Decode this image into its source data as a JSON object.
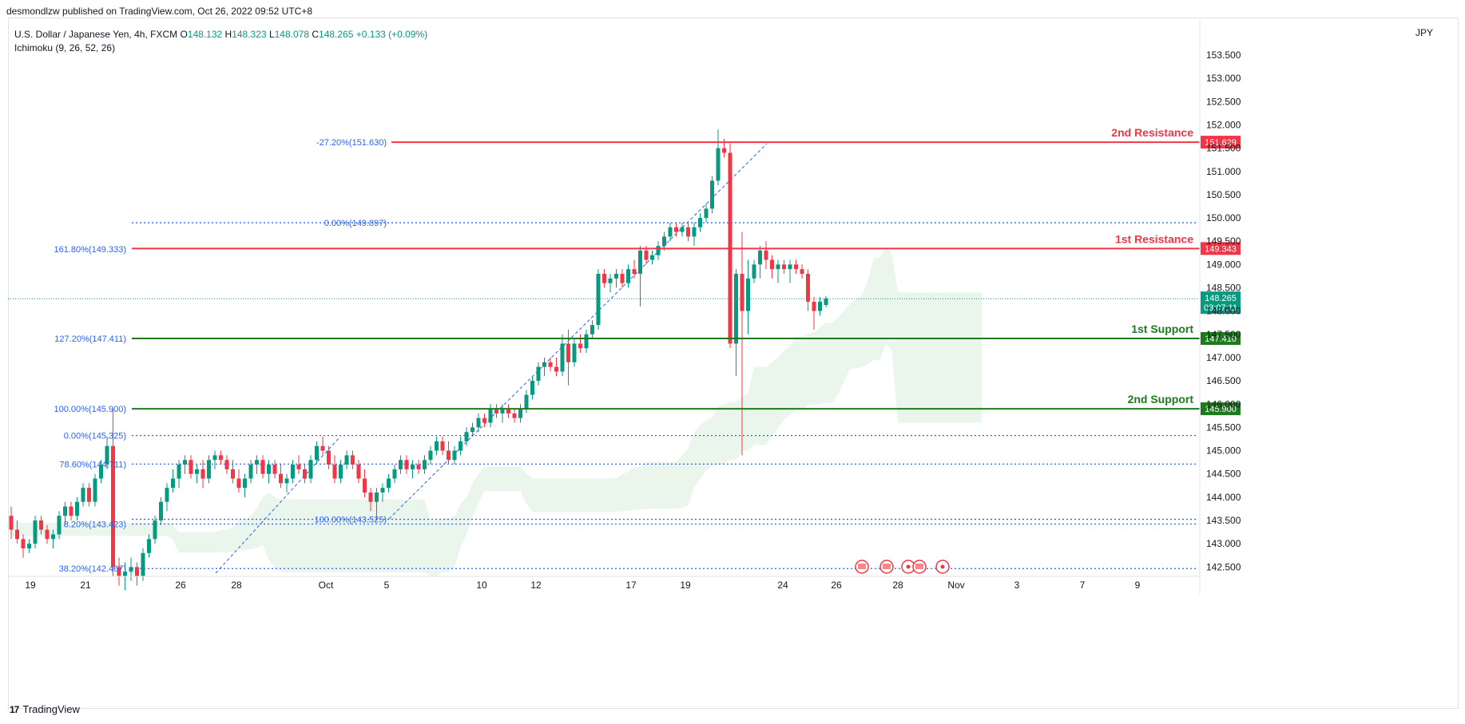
{
  "header": {
    "publisher": "desmondlzw published on TradingView.com, Oct 26, 2022 09:52 UTC+8"
  },
  "legend": {
    "symbol": "U.S. Dollar / Japanese Yen, 4h, FXCM",
    "open_label": "O",
    "open": "148.132",
    "high_label": "H",
    "high": "148.323",
    "low_label": "L",
    "low": "148.078",
    "close_label": "C",
    "close": "148.265",
    "change": "+0.133 (+0.09%)",
    "indicator": "Ichimoku (9, 26, 52, 26)"
  },
  "currency": "JPY",
  "footer": {
    "brand": "TradingView",
    "logo_mark": "17"
  },
  "colors": {
    "up": "#089981",
    "down": "#f23645",
    "resistance": "#f23645",
    "support": "#1f7a1f",
    "fib": "#2962ff",
    "cloud": "#e6f4e8"
  },
  "chart_data": {
    "type": "candlestick",
    "ylim": [
      142.2,
      154.0
    ],
    "y_ticks": [
      "153.500",
      "153.000",
      "152.500",
      "152.000",
      "151.500",
      "151.000",
      "150.500",
      "150.000",
      "149.500",
      "149.000",
      "148.500",
      "148.000",
      "147.500",
      "147.000",
      "146.500",
      "146.000",
      "145.500",
      "145.000",
      "144.500",
      "144.000",
      "143.500",
      "143.000",
      "142.500"
    ],
    "x_ticks": [
      "19",
      "21",
      "26",
      "28",
      "Oct",
      "5",
      "10",
      "12",
      "17",
      "19",
      "24",
      "26",
      "28",
      "Nov",
      "3",
      "7",
      "9"
    ],
    "current_price": {
      "price": 148.265,
      "label": "148.265",
      "countdown": "03:07:11"
    },
    "horizontal_levels": [
      {
        "name": "2nd Resistance",
        "price": 151.629,
        "label": "151.629",
        "kind": "resistance"
      },
      {
        "name": "1st Resistance",
        "price": 149.343,
        "label": "149.343",
        "kind": "resistance"
      },
      {
        "name": "1st Support",
        "price": 147.41,
        "label": "147.410",
        "kind": "support"
      },
      {
        "name": "2nd Support",
        "price": 145.9,
        "label": "145.900",
        "kind": "support"
      }
    ],
    "fib_labels": [
      {
        "text": "-27.20%(151.630)",
        "price": 151.63
      },
      {
        "text": "0.00%(149.897)",
        "price": 149.897
      },
      {
        "text": "161.80%(149.333)",
        "price": 149.333
      },
      {
        "text": "127.20%(147.411)",
        "price": 147.411
      },
      {
        "text": "100.00%(145.900)",
        "price": 145.9
      },
      {
        "text": "0.00%(145.325)",
        "price": 145.325
      },
      {
        "text": "78.60%(144.711)",
        "price": 144.711
      },
      {
        "text": "8.20%(143.423)",
        "price": 143.423
      },
      {
        "text": "100.00%(143.525)",
        "price": 143.525
      },
      {
        "text": "38.20%(142.467)",
        "price": 142.467
      }
    ],
    "dotted_levels": [
      149.897,
      145.325,
      144.711,
      143.525,
      143.423,
      142.467
    ],
    "trend_lines": [
      {
        "from": {
          "bar": 0.47,
          "price": 142.4
        },
        "to": {
          "bar": 0.885,
          "price": 145.4
        }
      },
      {
        "from": {
          "bar": 1.075,
          "price": 143.5
        },
        "to": {
          "bar": 1.97,
          "price": 151.6
        }
      }
    ],
    "event_markers": [
      "us-flag",
      "us-flag",
      "circle",
      "us-flag",
      "circle"
    ],
    "candles": [
      [
        143.6,
        143.8,
        143.1,
        143.3
      ],
      [
        143.3,
        143.5,
        143.0,
        143.1
      ],
      [
        143.1,
        143.2,
        142.7,
        142.9
      ],
      [
        142.9,
        143.1,
        142.8,
        143.0
      ],
      [
        143.0,
        143.6,
        142.9,
        143.5
      ],
      [
        143.5,
        143.6,
        143.2,
        143.3
      ],
      [
        143.3,
        143.4,
        143.0,
        143.1
      ],
      [
        143.1,
        143.3,
        142.9,
        143.2
      ],
      [
        143.2,
        143.7,
        143.1,
        143.6
      ],
      [
        143.6,
        143.9,
        143.4,
        143.8
      ],
      [
        143.8,
        143.9,
        143.5,
        143.6
      ],
      [
        143.6,
        144.0,
        143.5,
        143.9
      ],
      [
        143.9,
        144.3,
        143.8,
        144.2
      ],
      [
        144.2,
        144.3,
        143.8,
        143.9
      ],
      [
        143.9,
        144.5,
        143.8,
        144.4
      ],
      [
        144.4,
        144.8,
        144.3,
        144.7
      ],
      [
        144.7,
        145.3,
        144.6,
        145.1
      ],
      [
        145.1,
        145.9,
        142.3,
        142.5
      ],
      [
        142.5,
        142.7,
        142.1,
        142.3
      ],
      [
        142.3,
        142.6,
        142.0,
        142.4
      ],
      [
        142.4,
        142.7,
        142.2,
        142.5
      ],
      [
        142.5,
        142.6,
        142.1,
        142.3
      ],
      [
        142.3,
        142.9,
        142.2,
        142.8
      ],
      [
        142.8,
        143.2,
        142.7,
        143.1
      ],
      [
        143.1,
        143.6,
        143.0,
        143.5
      ],
      [
        143.5,
        144.0,
        143.4,
        143.9
      ],
      [
        143.9,
        144.3,
        143.7,
        144.2
      ],
      [
        144.2,
        144.6,
        144.1,
        144.4
      ],
      [
        144.4,
        144.8,
        144.2,
        144.7
      ],
      [
        144.7,
        144.9,
        144.5,
        144.8
      ],
      [
        144.8,
        144.9,
        144.4,
        144.5
      ],
      [
        144.5,
        144.7,
        144.3,
        144.6
      ],
      [
        144.6,
        144.8,
        144.2,
        144.4
      ],
      [
        144.4,
        144.9,
        144.3,
        144.8
      ],
      [
        144.8,
        145.0,
        144.6,
        144.9
      ],
      [
        144.9,
        145.0,
        144.7,
        144.8
      ],
      [
        144.8,
        144.9,
        144.5,
        144.6
      ],
      [
        144.6,
        144.8,
        144.3,
        144.4
      ],
      [
        144.4,
        144.6,
        144.1,
        144.2
      ],
      [
        144.2,
        144.5,
        144.0,
        144.4
      ],
      [
        144.4,
        144.8,
        144.3,
        144.7
      ],
      [
        144.7,
        144.9,
        144.5,
        144.8
      ],
      [
        144.8,
        144.9,
        144.4,
        144.5
      ],
      [
        144.5,
        144.8,
        144.3,
        144.7
      ],
      [
        144.7,
        144.8,
        144.4,
        144.5
      ],
      [
        144.5,
        144.7,
        144.2,
        144.3
      ],
      [
        144.3,
        144.5,
        144.1,
        144.4
      ],
      [
        144.4,
        144.8,
        144.3,
        144.7
      ],
      [
        144.7,
        144.9,
        144.5,
        144.6
      ],
      [
        144.6,
        144.7,
        144.3,
        144.4
      ],
      [
        144.4,
        144.9,
        144.3,
        144.8
      ],
      [
        144.8,
        145.2,
        144.7,
        145.1
      ],
      [
        145.1,
        145.3,
        144.9,
        145.0
      ],
      [
        145.0,
        145.1,
        144.6,
        144.7
      ],
      [
        144.7,
        144.9,
        144.3,
        144.4
      ],
      [
        144.4,
        144.8,
        144.3,
        144.7
      ],
      [
        144.7,
        145.0,
        144.6,
        144.9
      ],
      [
        144.9,
        145.0,
        144.6,
        144.7
      ],
      [
        144.7,
        144.8,
        144.3,
        144.4
      ],
      [
        144.4,
        144.6,
        144.0,
        144.1
      ],
      [
        144.1,
        144.2,
        143.7,
        143.9
      ],
      [
        143.9,
        144.2,
        143.5,
        144.1
      ],
      [
        144.1,
        144.3,
        143.9,
        144.2
      ],
      [
        144.2,
        144.5,
        144.1,
        144.4
      ],
      [
        144.4,
        144.7,
        144.3,
        144.6
      ],
      [
        144.6,
        144.9,
        144.5,
        144.8
      ],
      [
        144.8,
        144.9,
        144.5,
        144.6
      ],
      [
        144.6,
        144.8,
        144.4,
        144.7
      ],
      [
        144.7,
        144.8,
        144.5,
        144.6
      ],
      [
        144.6,
        144.9,
        144.5,
        144.8
      ],
      [
        144.8,
        145.1,
        144.7,
        145.0
      ],
      [
        145.0,
        145.3,
        144.9,
        145.2
      ],
      [
        145.2,
        145.3,
        144.9,
        145.0
      ],
      [
        145.0,
        145.2,
        144.7,
        144.8
      ],
      [
        144.8,
        145.1,
        144.7,
        145.0
      ],
      [
        145.0,
        145.3,
        144.9,
        145.2
      ],
      [
        145.2,
        145.5,
        145.1,
        145.4
      ],
      [
        145.4,
        145.6,
        145.3,
        145.5
      ],
      [
        145.5,
        145.8,
        145.4,
        145.7
      ],
      [
        145.7,
        145.8,
        145.5,
        145.6
      ],
      [
        145.6,
        146.0,
        145.5,
        145.9
      ],
      [
        145.9,
        146.0,
        145.7,
        145.8
      ],
      [
        145.8,
        146.0,
        145.6,
        145.9
      ],
      [
        145.9,
        146.0,
        145.7,
        145.8
      ],
      [
        145.8,
        145.9,
        145.6,
        145.7
      ],
      [
        145.7,
        146.0,
        145.6,
        145.9
      ],
      [
        145.9,
        146.3,
        145.8,
        146.2
      ],
      [
        146.2,
        146.6,
        146.1,
        146.5
      ],
      [
        146.5,
        146.9,
        146.4,
        146.8
      ],
      [
        146.8,
        147.0,
        146.6,
        146.9
      ],
      [
        146.9,
        147.0,
        146.7,
        146.8
      ],
      [
        146.8,
        147.0,
        146.6,
        146.7
      ],
      [
        146.7,
        147.5,
        146.6,
        147.3
      ],
      [
        147.3,
        147.6,
        146.4,
        146.9
      ],
      [
        146.9,
        147.4,
        146.8,
        147.3
      ],
      [
        147.3,
        147.5,
        147.1,
        147.2
      ],
      [
        147.2,
        147.6,
        147.1,
        147.5
      ],
      [
        147.5,
        147.8,
        147.4,
        147.7
      ],
      [
        147.7,
        148.9,
        147.6,
        148.8
      ],
      [
        148.8,
        148.9,
        148.5,
        148.6
      ],
      [
        148.6,
        148.8,
        148.4,
        148.7
      ],
      [
        148.7,
        148.9,
        148.5,
        148.8
      ],
      [
        148.8,
        148.9,
        148.5,
        148.6
      ],
      [
        148.6,
        149.0,
        148.5,
        148.9
      ],
      [
        148.9,
        149.1,
        148.7,
        148.8
      ],
      [
        148.8,
        149.4,
        148.1,
        149.3
      ],
      [
        149.3,
        149.4,
        149.0,
        149.1
      ],
      [
        149.1,
        149.3,
        149.0,
        149.2
      ],
      [
        149.2,
        149.5,
        149.1,
        149.4
      ],
      [
        149.4,
        149.7,
        149.3,
        149.6
      ],
      [
        149.6,
        149.9,
        149.5,
        149.8
      ],
      [
        149.8,
        149.9,
        149.6,
        149.7
      ],
      [
        149.7,
        149.9,
        149.6,
        149.8
      ],
      [
        149.8,
        149.9,
        149.5,
        149.6
      ],
      [
        149.6,
        149.9,
        149.4,
        149.8
      ],
      [
        149.8,
        150.1,
        149.7,
        150.0
      ],
      [
        150.0,
        150.3,
        149.9,
        150.2
      ],
      [
        150.2,
        150.9,
        150.1,
        150.8
      ],
      [
        150.8,
        151.9,
        150.7,
        151.5
      ],
      [
        151.5,
        151.7,
        151.3,
        151.4
      ],
      [
        151.4,
        151.6,
        147.2,
        147.3
      ],
      [
        147.3,
        148.9,
        146.6,
        148.8
      ],
      [
        148.8,
        149.7,
        144.9,
        148.0
      ],
      [
        148.0,
        149.1,
        147.5,
        148.7
      ],
      [
        148.7,
        149.1,
        148.6,
        149.0
      ],
      [
        149.0,
        149.4,
        148.7,
        149.3
      ],
      [
        149.3,
        149.5,
        148.9,
        149.1
      ],
      [
        149.1,
        149.2,
        148.7,
        148.9
      ],
      [
        148.9,
        149.1,
        148.6,
        149.0
      ],
      [
        149.0,
        149.1,
        148.8,
        148.9
      ],
      [
        148.9,
        149.1,
        148.6,
        149.0
      ],
      [
        149.0,
        149.1,
        148.8,
        148.9
      ],
      [
        148.9,
        149.0,
        148.7,
        148.8
      ],
      [
        148.8,
        148.9,
        148.0,
        148.2
      ],
      [
        148.2,
        148.3,
        147.6,
        148.0
      ],
      [
        148.0,
        148.3,
        147.9,
        148.2
      ],
      [
        148.13,
        148.32,
        148.08,
        148.27
      ]
    ]
  }
}
